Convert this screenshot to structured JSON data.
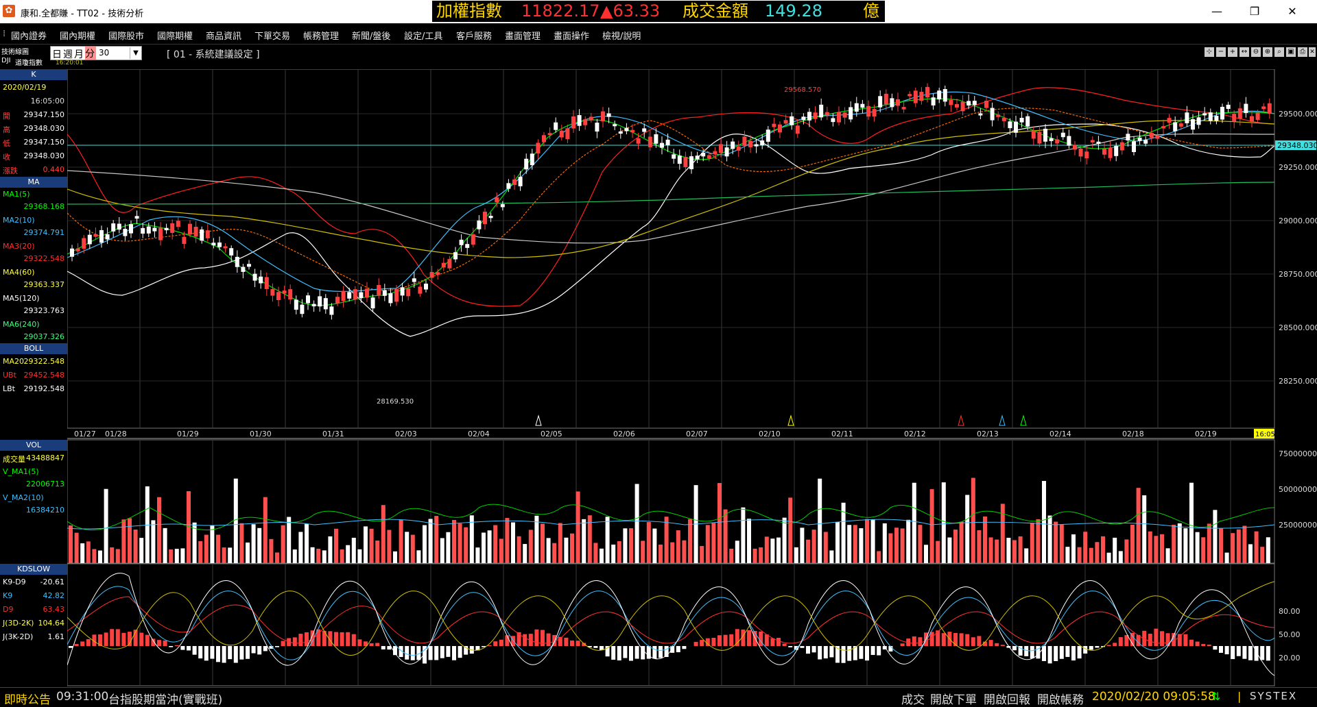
{
  "window": {
    "title": "康和.全都賺 - TT02 - 技術分析",
    "minimize": "—",
    "maximize": "❐",
    "close": "✕"
  },
  "ticker": {
    "index_name": "加權指數",
    "index_value": "11822.17",
    "index_change": "▲63.33",
    "turnover_label": "成交金額",
    "turnover_value": "149.28",
    "turnover_unit": "億"
  },
  "menu": [
    "國內證券",
    "國內期權",
    "國際股市",
    "國際期權",
    "商品資訊",
    "下單交易",
    "帳務管理",
    "新聞/盤後",
    "設定/工具",
    "客戶服務",
    "畫面管理",
    "畫面操作",
    "檢視/說明"
  ],
  "toolbar": {
    "panel_title": "技術線圖",
    "symbol": "DJI",
    "symbol_name": "道瓊指數",
    "symbol_time": "16:20:01",
    "period_day": "日",
    "period_week": "週",
    "period_month": "月",
    "period_minute": "分",
    "interval": "30",
    "setting": "[ 01 - 系統建議設定 ]"
  },
  "k_panel": {
    "header": "K",
    "date": "2020/02/19",
    "time": "16:05:00",
    "rows": [
      {
        "label": "開",
        "value": "29347.150",
        "color": "#ffffff"
      },
      {
        "label": "高",
        "value": "29348.030",
        "color": "#ffffff"
      },
      {
        "label": "低",
        "value": "29347.150",
        "color": "#ffffff"
      },
      {
        "label": "收",
        "value": "29348.030",
        "color": "#ffffff"
      },
      {
        "label": "漲跌",
        "value": "0.440",
        "color": "#ff4040"
      }
    ]
  },
  "ma_panel": {
    "header": "MA",
    "rows": [
      {
        "label": "MA1(5)",
        "value": "29368.168",
        "color": "#00ff00"
      },
      {
        "label": "MA2(10)",
        "value": "29374.791",
        "color": "#40c0ff"
      },
      {
        "label": "MA3(20)",
        "value": "29322.548",
        "color": "#ff3030"
      },
      {
        "label": "MA4(60)",
        "value": "29363.337",
        "color": "#ffff40"
      },
      {
        "label": "MA5(120)",
        "value": "29323.763",
        "color": "#ffffff"
      },
      {
        "label": "MA6(240)",
        "value": "29037.326",
        "color": "#40ff80"
      }
    ]
  },
  "boll_panel": {
    "header": "BOLL",
    "rows": [
      {
        "label": "MA20",
        "value": "29322.548",
        "color": "#ffff40"
      },
      {
        "label": "UBt",
        "value": "29452.548",
        "color": "#ff3030"
      },
      {
        "label": "LBt",
        "value": "29192.548",
        "color": "#ffffff"
      }
    ]
  },
  "vol_panel": {
    "header": "VOL",
    "rows": [
      {
        "label": "成交量",
        "value": "43488847",
        "color": "#ffff40"
      },
      {
        "label": "V_MA1(5)",
        "value": "22006713",
        "color": "#00ff00"
      },
      {
        "label": "V_MA2(10)",
        "value": "16384210",
        "color": "#40c0ff"
      }
    ]
  },
  "kd_panel": {
    "header": "KDSLOW",
    "rows": [
      {
        "label": "K9-D9",
        "value": "-20.61",
        "color": "#ffffff"
      },
      {
        "label": "K9",
        "value": "42.82",
        "color": "#40c0ff"
      },
      {
        "label": "D9",
        "value": "63.43",
        "color": "#ff3030"
      },
      {
        "label": "J(3D-2K)",
        "value": "104.64",
        "color": "#ffff40"
      },
      {
        "label": "J(3K-2D)",
        "value": "1.61",
        "color": "#ffffff"
      }
    ]
  },
  "price_axis": [
    "29500.000",
    "29250.000",
    "29000.000",
    "28750.000",
    "28500.000",
    "28250.000"
  ],
  "current_price": "29348.030",
  "high_label": "29568.570",
  "low_label": "28169.530",
  "date_axis": [
    "01/27",
    "01/28",
    "01/29",
    "01/30",
    "01/31",
    "02/03",
    "02/04",
    "02/05",
    "02/06",
    "02/07",
    "02/10",
    "02/11",
    "02/12",
    "02/13",
    "02/14",
    "02/18",
    "02/19"
  ],
  "time_marker": "16:05",
  "vol_axis": [
    "75000000",
    "50000000",
    "25000000"
  ],
  "kd_axis": [
    "80.00",
    "50.00",
    "20.00"
  ],
  "statusbar": {
    "notice": "即時公告",
    "notice_time": "09:31:00",
    "notice_text": "台指股期當沖(實戰班)",
    "btn_fill": "成交",
    "btn_order": "開啟下單",
    "btn_report": "開啟回報",
    "btn_account": "開啟帳務",
    "datetime": "2020/02/20 09:05:58",
    "brand": "SYSTEX"
  }
}
